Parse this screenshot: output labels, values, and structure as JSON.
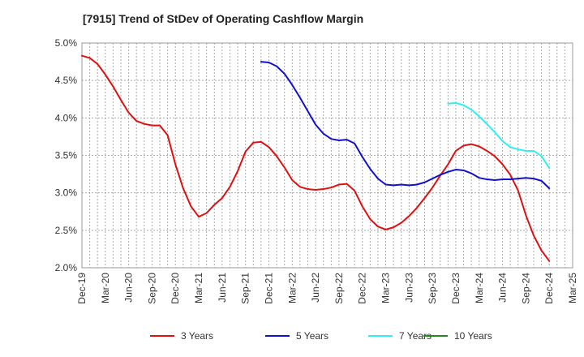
{
  "chart_data": {
    "type": "line",
    "title": "[7915]  Trend of StDev of Operating Cashflow Margin",
    "xlabel": "",
    "ylabel": "",
    "ylim": [
      2.0,
      5.0
    ],
    "y_ticks": [
      "2.0%",
      "2.5%",
      "3.0%",
      "3.5%",
      "4.0%",
      "4.5%",
      "5.0%"
    ],
    "x_ticks": [
      "Dec-19",
      "Mar-20",
      "Jun-20",
      "Sep-20",
      "Dec-20",
      "Mar-21",
      "Jun-21",
      "Sep-21",
      "Dec-21",
      "Mar-22",
      "Jun-22",
      "Sep-22",
      "Dec-22",
      "Mar-23",
      "Jun-23",
      "Sep-23",
      "Dec-23",
      "Mar-24",
      "Jun-24",
      "Sep-24",
      "Dec-24",
      "Mar-25"
    ],
    "grid": true,
    "legend_position": "bottom",
    "series": [
      {
        "name": "3 Years",
        "color": "#dd1111",
        "values": [
          4.83,
          4.8,
          4.72,
          4.58,
          4.42,
          4.24,
          4.07,
          3.96,
          3.92,
          3.9,
          3.9,
          3.77,
          3.38,
          3.06,
          2.82,
          2.68,
          2.73,
          2.84,
          2.93,
          3.08,
          3.29,
          3.55,
          3.67,
          3.68,
          3.61,
          3.49,
          3.34,
          3.17,
          3.08,
          3.05,
          3.04,
          3.05,
          3.07,
          3.11,
          3.12,
          3.03,
          2.82,
          2.65,
          2.55,
          2.51,
          2.54,
          2.6,
          2.69,
          2.8,
          2.93,
          3.07,
          3.23,
          3.38,
          3.56,
          3.63,
          3.65,
          3.62,
          3.56,
          3.49,
          3.38,
          3.24,
          3.03,
          2.7,
          2.43,
          2.23,
          2.09
        ]
      },
      {
        "name": "5 Years",
        "color": "#1111cc",
        "values": [
          null,
          null,
          null,
          null,
          null,
          null,
          null,
          null,
          null,
          null,
          null,
          null,
          null,
          null,
          null,
          null,
          null,
          null,
          null,
          null,
          null,
          null,
          null,
          4.75,
          4.74,
          4.69,
          4.59,
          4.44,
          4.27,
          4.09,
          3.91,
          3.79,
          3.72,
          3.7,
          3.71,
          3.66,
          3.48,
          3.32,
          3.19,
          3.11,
          3.1,
          3.11,
          3.1,
          3.11,
          3.14,
          3.19,
          3.24,
          3.28,
          3.31,
          3.3,
          3.26,
          3.2,
          3.18,
          3.17,
          3.18,
          3.18,
          3.19,
          3.2,
          3.19,
          3.16,
          3.06
        ]
      },
      {
        "name": "7 Years",
        "color": "#33eeee",
        "values": [
          null,
          null,
          null,
          null,
          null,
          null,
          null,
          null,
          null,
          null,
          null,
          null,
          null,
          null,
          null,
          null,
          null,
          null,
          null,
          null,
          null,
          null,
          null,
          null,
          null,
          null,
          null,
          null,
          null,
          null,
          null,
          null,
          null,
          null,
          null,
          null,
          null,
          null,
          null,
          null,
          null,
          null,
          null,
          null,
          null,
          null,
          null,
          4.19,
          4.2,
          4.17,
          4.11,
          4.02,
          3.92,
          3.81,
          3.69,
          3.61,
          3.58,
          3.56,
          3.56,
          3.49,
          3.33
        ]
      },
      {
        "name": "10 Years",
        "color": "#228822",
        "values": []
      }
    ]
  }
}
